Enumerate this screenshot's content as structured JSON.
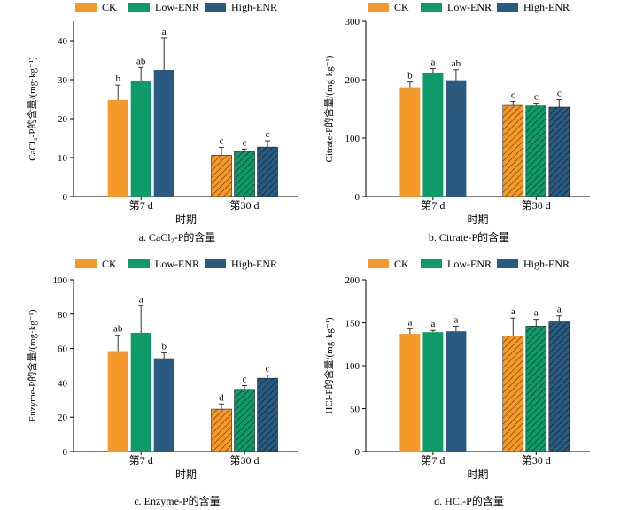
{
  "series_colors": [
    "#f59a2a",
    "#0f9a6a",
    "#2a5a80"
  ],
  "legend": [
    "CK",
    "Low-ENR",
    "High-ENR"
  ],
  "chart_data": [
    {
      "type": "bar",
      "caption": "a.  CaCl₂-P的含量",
      "ylabel": "CaCl₂-P的含量/(mg·kg⁻¹)",
      "xlabel": "时期",
      "categories": [
        "第7 d",
        "第30 d"
      ],
      "ylim": [
        0,
        45
      ],
      "yticks": [
        0,
        10,
        20,
        30,
        40
      ],
      "series": [
        {
          "name": "CK",
          "values": [
            24.8,
            10.6
          ],
          "errors": [
            3.8,
            2.0
          ],
          "letters": [
            "b",
            "c"
          ]
        },
        {
          "name": "Low-ENR",
          "values": [
            29.6,
            11.6
          ],
          "errors": [
            3.5,
            0.6
          ],
          "letters": [
            "ab",
            "c"
          ]
        },
        {
          "name": "High-ENR",
          "values": [
            32.5,
            12.7
          ],
          "errors": [
            8.2,
            1.6
          ],
          "letters": [
            "a",
            "c"
          ]
        }
      ]
    },
    {
      "type": "bar",
      "caption": "b.  Citrate-P的含量",
      "ylabel": "Citrate-P的含量/(mg·kg⁻¹)",
      "xlabel": "时期",
      "categories": [
        "第7 d",
        "第30 d"
      ],
      "ylim": [
        0,
        300
      ],
      "yticks": [
        0,
        100,
        200,
        300
      ],
      "series": [
        {
          "name": "CK",
          "values": [
            187,
            156
          ],
          "errors": [
            9,
            7
          ],
          "letters": [
            "b",
            "c"
          ]
        },
        {
          "name": "Low-ENR",
          "values": [
            211,
            155
          ],
          "errors": [
            8,
            5
          ],
          "letters": [
            "a",
            "c"
          ]
        },
        {
          "name": "High-ENR",
          "values": [
            199,
            153
          ],
          "errors": [
            18,
            13
          ],
          "letters": [
            "ab",
            "c"
          ]
        }
      ]
    },
    {
      "type": "bar",
      "caption": "c.  Enzyme-P的含量",
      "ylabel": "Enzyme-P的含量/(mg·kg⁻¹)",
      "xlabel": "时期",
      "categories": [
        "第7 d",
        "第30 d"
      ],
      "ylim": [
        0,
        100
      ],
      "yticks": [
        0,
        20,
        40,
        60,
        80,
        100
      ],
      "series": [
        {
          "name": "CK",
          "values": [
            58.5,
            24.7
          ],
          "errors": [
            9.2,
            3.0
          ],
          "letters": [
            "ab",
            "d"
          ]
        },
        {
          "name": "Low-ENR",
          "values": [
            69.1,
            36.2
          ],
          "errors": [
            15.8,
            2.2
          ],
          "letters": [
            "a",
            "c"
          ]
        },
        {
          "name": "High-ENR",
          "values": [
            54.3,
            42.7
          ],
          "errors": [
            3.2,
            1.8
          ],
          "letters": [
            "b",
            "c"
          ]
        }
      ]
    },
    {
      "type": "bar",
      "caption": "d.  HCl-P的含量",
      "ylabel": "HCl-P的含量/(mg·kg⁻¹)",
      "xlabel": "时期",
      "categories": [
        "第7 d",
        "第30 d"
      ],
      "ylim": [
        0,
        200
      ],
      "yticks": [
        0,
        50,
        100,
        150,
        200
      ],
      "series": [
        {
          "name": "CK",
          "values": [
            137,
            134.5
          ],
          "errors": [
            6,
            21
          ],
          "letters": [
            "a",
            "a"
          ]
        },
        {
          "name": "Low-ENR",
          "values": [
            139,
            146
          ],
          "errors": [
            2,
            8
          ],
          "letters": [
            "a",
            "a"
          ]
        },
        {
          "name": "High-ENR",
          "values": [
            140,
            151
          ],
          "errors": [
            6,
            7
          ],
          "letters": [
            "a",
            "a"
          ]
        }
      ]
    }
  ]
}
